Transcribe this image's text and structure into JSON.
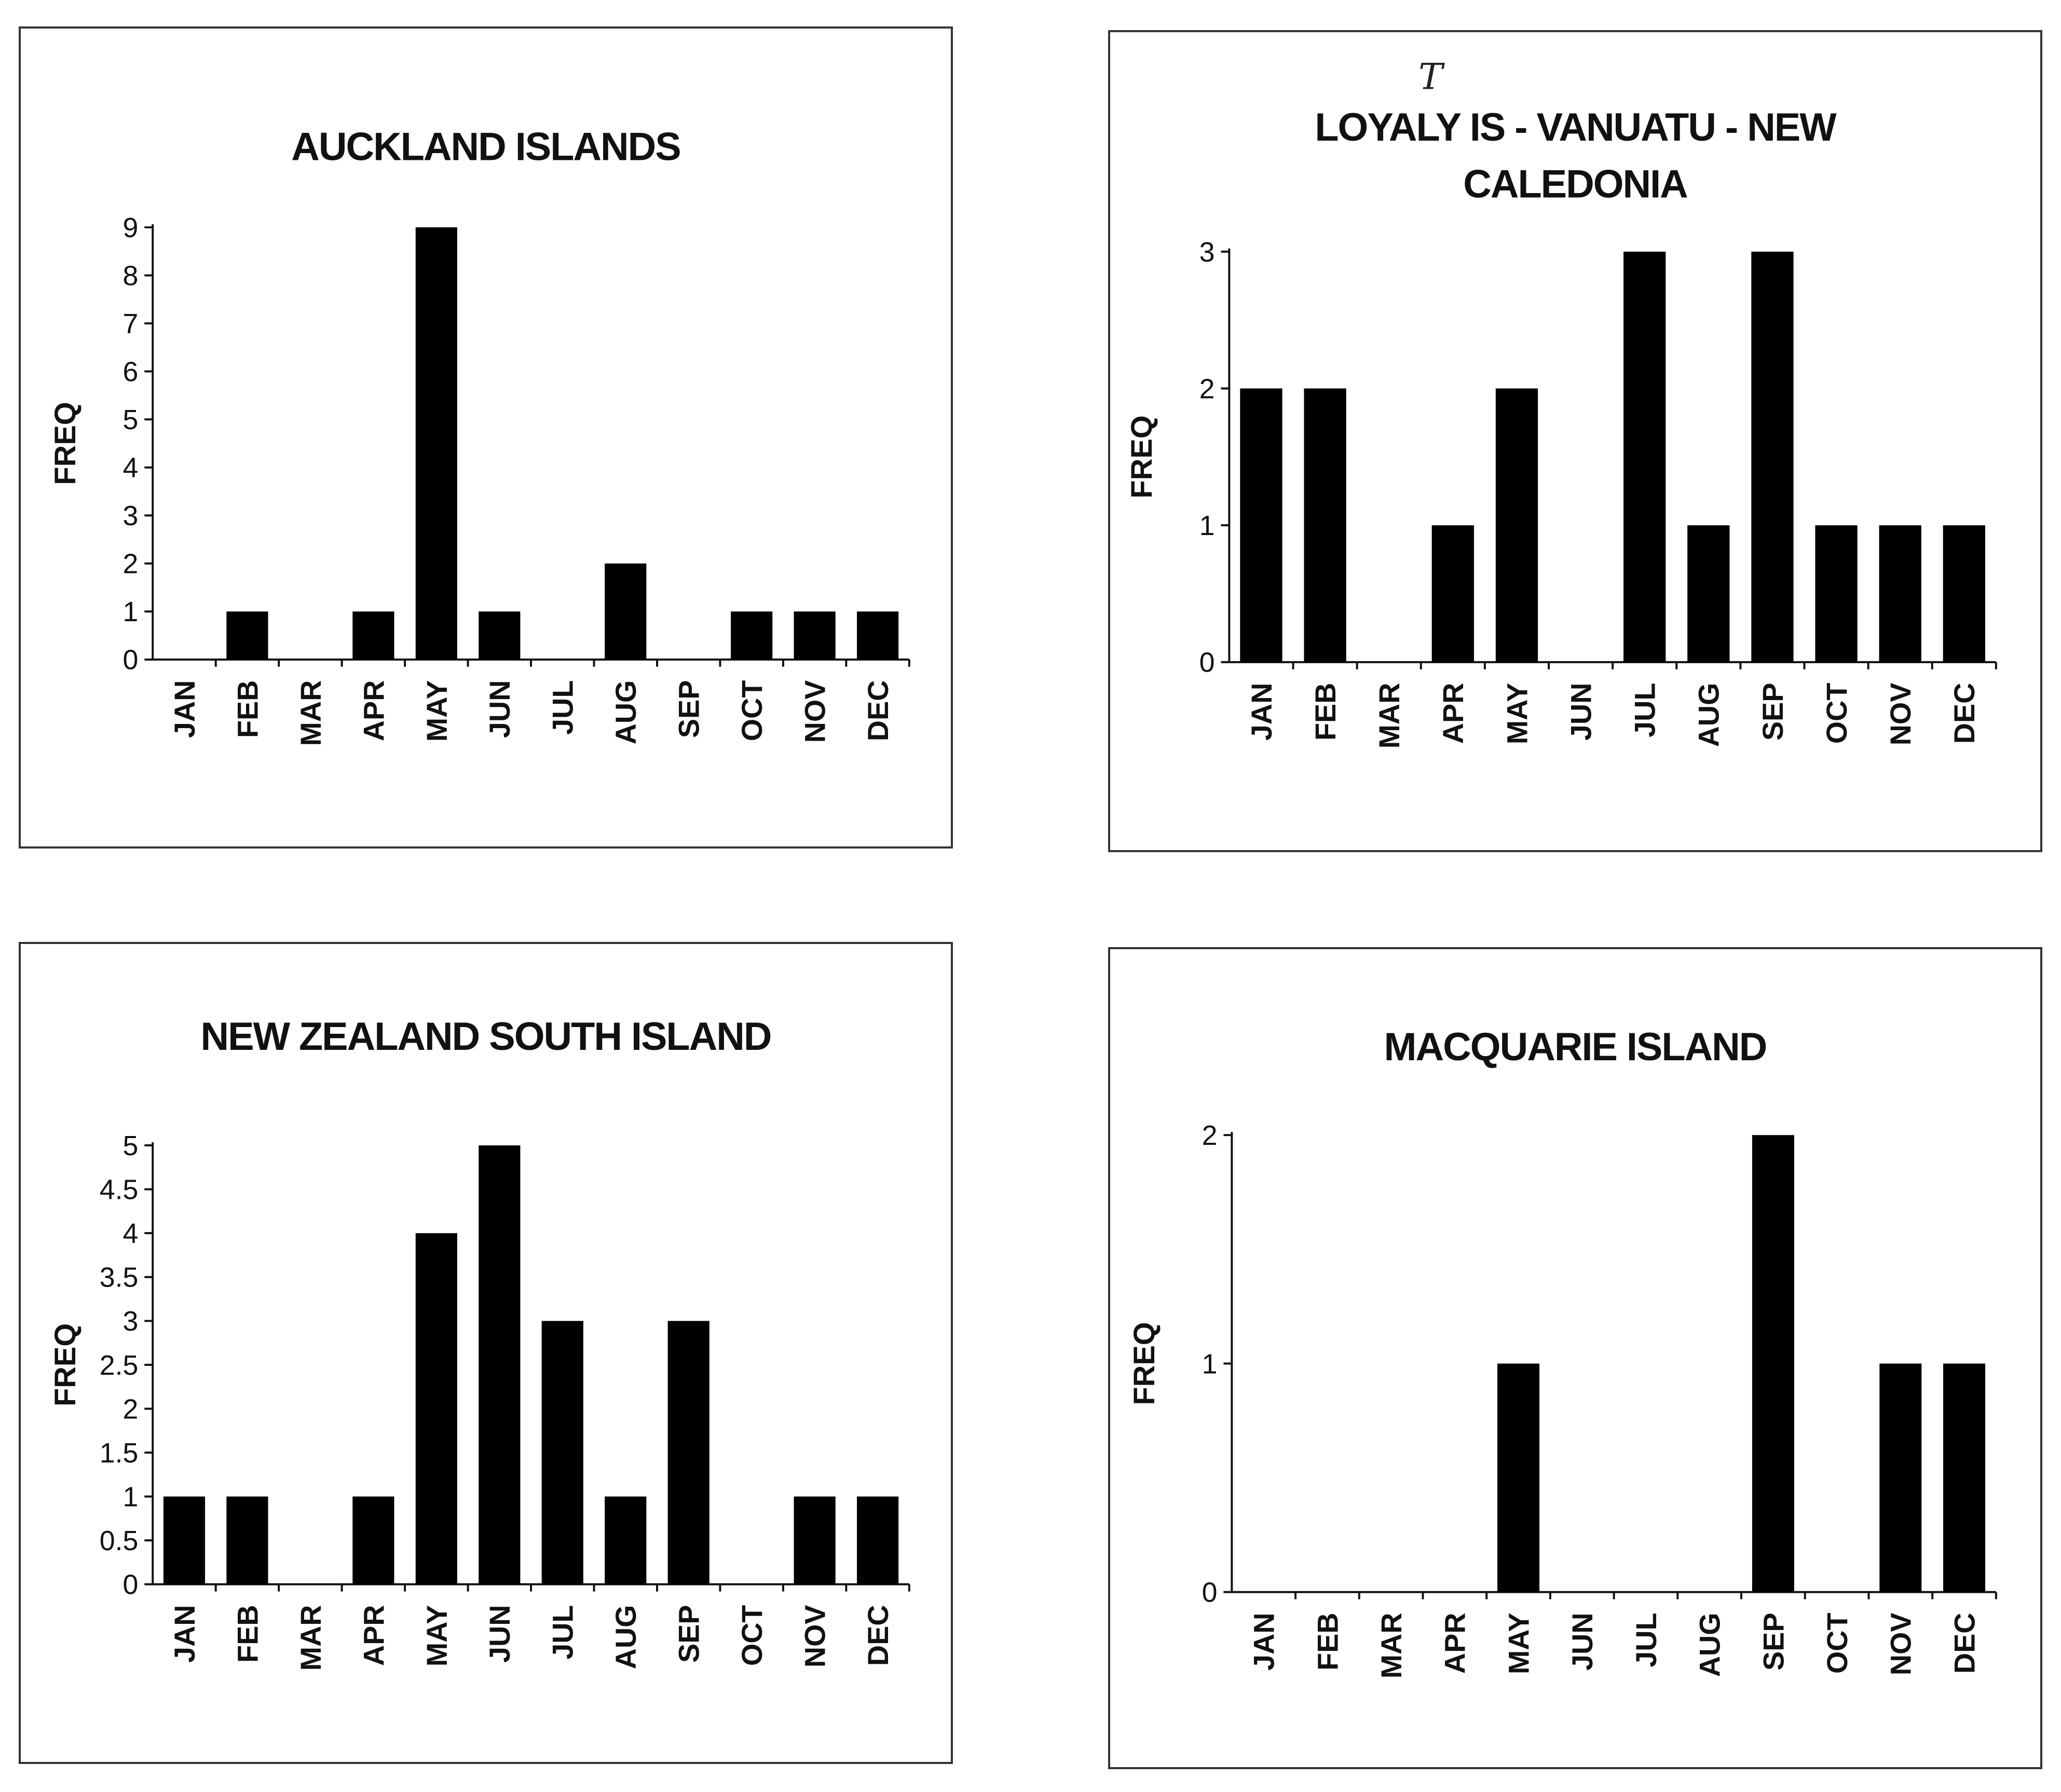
{
  "chart_data": [
    {
      "type": "bar",
      "title_lines": [
        "AUCKLAND ISLANDS"
      ],
      "ylabel": "FREQ",
      "xlabel": "",
      "categories": [
        "JAN",
        "FEB",
        "MAR",
        "APR",
        "MAY",
        "JUN",
        "JUL",
        "AUG",
        "SEP",
        "OCT",
        "NOV",
        "DEC"
      ],
      "values": [
        0,
        1,
        0,
        1,
        9,
        1,
        0,
        2,
        0,
        1,
        1,
        1
      ],
      "ylim": [
        0,
        9
      ],
      "yticks": [
        "0",
        "1",
        "2",
        "3",
        "4",
        "5",
        "6",
        "7",
        "8",
        "9"
      ],
      "grid": false,
      "legend": "none"
    },
    {
      "type": "bar",
      "title_lines": [
        "LOYALY IS - VANUATU - NEW",
        "CALEDONIA"
      ],
      "ylabel": "FREQ",
      "xlabel": "",
      "categories": [
        "JAN",
        "FEB",
        "MAR",
        "APR",
        "MAY",
        "JUN",
        "JUL",
        "AUG",
        "SEP",
        "OCT",
        "NOV",
        "DEC"
      ],
      "values": [
        2,
        2,
        0,
        1,
        2,
        0,
        3,
        1,
        3,
        1,
        1,
        1
      ],
      "ylim": [
        0,
        3
      ],
      "yticks": [
        "0",
        "1",
        "2",
        "3"
      ],
      "grid": false,
      "legend": "none",
      "annotation": "T"
    },
    {
      "type": "bar",
      "title_lines": [
        "NEW ZEALAND SOUTH ISLAND"
      ],
      "ylabel": "FREQ",
      "xlabel": "",
      "categories": [
        "JAN",
        "FEB",
        "MAR",
        "APR",
        "MAY",
        "JUN",
        "JUL",
        "AUG",
        "SEP",
        "OCT",
        "NOV",
        "DEC"
      ],
      "values": [
        1,
        1,
        0,
        1,
        4,
        5,
        3,
        1,
        3,
        0,
        1,
        1
      ],
      "ylim": [
        0,
        5
      ],
      "yticks": [
        "0",
        "0.5",
        "1",
        "1.5",
        "2",
        "2.5",
        "3",
        "3.5",
        "4",
        "4.5",
        "5"
      ],
      "grid": false,
      "legend": "none"
    },
    {
      "type": "bar",
      "title_lines": [
        "MACQUARIE ISLAND"
      ],
      "ylabel": "FREQ",
      "xlabel": "",
      "categories": [
        "JAN",
        "FEB",
        "MAR",
        "APR",
        "MAY",
        "JUN",
        "JUL",
        "AUG",
        "SEP",
        "OCT",
        "NOV",
        "DEC"
      ],
      "values": [
        0,
        0,
        0,
        0,
        1,
        0,
        0,
        0,
        2,
        0,
        1,
        1
      ],
      "ylim": [
        0,
        2
      ],
      "yticks": [
        "0",
        "1",
        "2"
      ],
      "grid": false,
      "legend": "none"
    }
  ],
  "colors": {
    "bar": "#000000",
    "axis": "#111111",
    "frame": "#333333"
  }
}
